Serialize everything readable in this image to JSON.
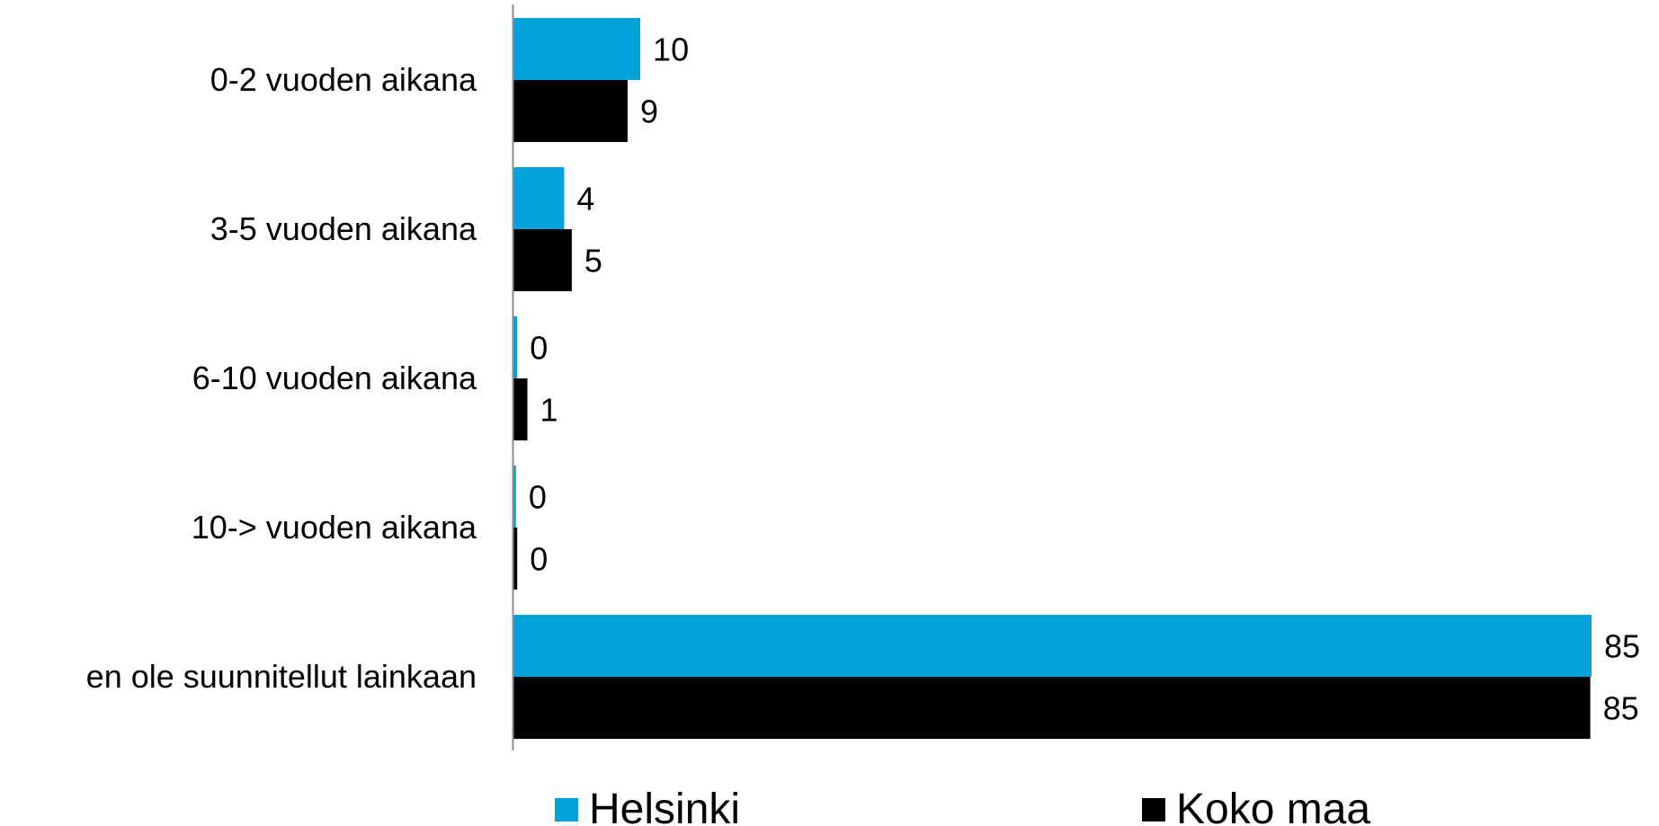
{
  "chart_data": {
    "type": "bar",
    "orientation": "horizontal",
    "categories": [
      "0-2 vuoden aikana",
      "3-5 vuoden aikana",
      "6-10 vuoden aikana",
      "10-> vuoden aikana",
      "en ole suunnitellut lainkaan"
    ],
    "series": [
      {
        "name": "Helsinki",
        "color": "#02A3DA",
        "values": [
          10,
          4,
          0.3,
          0.2,
          85
        ]
      },
      {
        "name": "Koko maa",
        "color": "#000000",
        "values": [
          9,
          4.6,
          1.1,
          0.3,
          84.9
        ]
      }
    ],
    "data_labels": [
      [
        "10",
        "4",
        "0",
        "0",
        "85"
      ],
      [
        "9",
        "5",
        "1",
        "0",
        "85"
      ]
    ],
    "xlim": [
      0,
      85
    ],
    "grid": false,
    "legend_position": "bottom"
  }
}
